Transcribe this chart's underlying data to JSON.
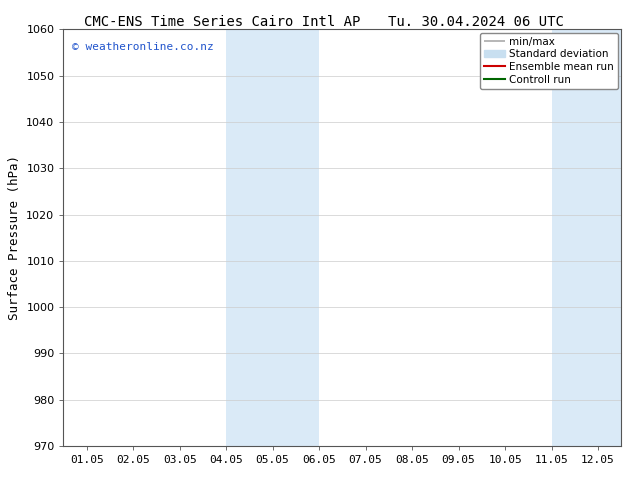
{
  "title_left": "CMC-ENS Time Series Cairo Intl AP",
  "title_right": "Tu. 30.04.2024 06 UTC",
  "ylabel": "Surface Pressure (hPa)",
  "ylim": [
    970,
    1060
  ],
  "yticks": [
    970,
    980,
    990,
    1000,
    1010,
    1020,
    1030,
    1040,
    1050,
    1060
  ],
  "xtick_labels": [
    "01.05",
    "02.05",
    "03.05",
    "04.05",
    "05.05",
    "06.05",
    "07.05",
    "08.05",
    "09.05",
    "10.05",
    "11.05",
    "12.05"
  ],
  "shaded_regions": [
    {
      "xstart": 3.0,
      "xend": 5.0,
      "color": "#daeaf7"
    },
    {
      "xstart": 10.0,
      "xend": 12.0,
      "color": "#daeaf7"
    }
  ],
  "watermark": "© weatheronline.co.nz",
  "watermark_color": "#2255cc",
  "legend_items": [
    {
      "label": "min/max",
      "color": "#aaaaaa",
      "lw": 1.2
    },
    {
      "label": "Standard deviation",
      "color": "#c8dff0",
      "lw": 6
    },
    {
      "label": "Ensemble mean run",
      "color": "#cc0000",
      "lw": 1.5
    },
    {
      "label": "Controll run",
      "color": "#006600",
      "lw": 1.5
    }
  ],
  "bg_color": "#ffffff",
  "plot_bg_color": "#ffffff",
  "title_fontsize": 10,
  "axis_label_fontsize": 9,
  "tick_fontsize": 8,
  "legend_fontsize": 7.5,
  "watermark_fontsize": 8
}
